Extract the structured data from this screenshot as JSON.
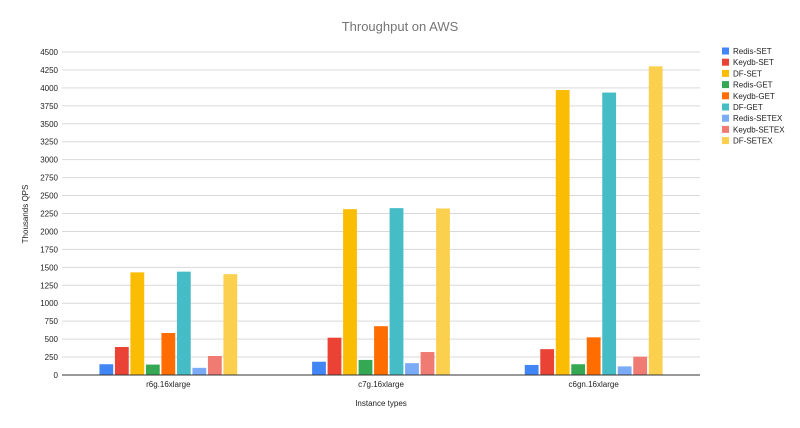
{
  "chart_data": {
    "type": "bar",
    "title": "Throughput on AWS",
    "xlabel": "Instance types",
    "ylabel": "Thousands QPS",
    "ylim": [
      0,
      4500
    ],
    "yticks": [
      0,
      250,
      500,
      750,
      1000,
      1250,
      1500,
      1750,
      2000,
      2250,
      2500,
      2750,
      3000,
      3250,
      3500,
      3750,
      4000,
      4250,
      4500
    ],
    "ytick_labels": [
      "0",
      "250",
      "500",
      "750",
      "1000",
      "1250",
      "1500",
      "1750",
      "2000",
      "2250",
      "2500",
      "2750",
      "3000",
      "3250",
      "3500",
      "3750",
      "4000",
      "4250",
      "4500"
    ],
    "grid": true,
    "legend_position": "right",
    "categories": [
      "r6g.16xlarge",
      "c7g.16xlarge",
      "c6gn.16xlarge"
    ],
    "series": [
      {
        "name": "Redis-SET",
        "color": "#4285f4",
        "values": [
          150,
          185,
          140
        ]
      },
      {
        "name": "Keydb-SET",
        "color": "#ea4335",
        "values": [
          390,
          520,
          360
        ]
      },
      {
        "name": "DF-SET",
        "color": "#fbbc04",
        "values": [
          1430,
          2310,
          3970
        ]
      },
      {
        "name": "Redis-GET",
        "color": "#34a853",
        "values": [
          145,
          210,
          150
        ]
      },
      {
        "name": "Keydb-GET",
        "color": "#ff6d01",
        "values": [
          585,
          680,
          525
        ]
      },
      {
        "name": "DF-GET",
        "color": "#46bdc6",
        "values": [
          1440,
          2325,
          3935
        ]
      },
      {
        "name": "Redis-SETEX",
        "color": "#7baaf7",
        "values": [
          100,
          165,
          120
        ]
      },
      {
        "name": "Keydb-SETEX",
        "color": "#f07b72",
        "values": [
          265,
          320,
          255
        ]
      },
      {
        "name": "DF-SETEX",
        "color": "#fcd04f",
        "values": [
          1405,
          2320,
          4300
        ]
      }
    ]
  }
}
